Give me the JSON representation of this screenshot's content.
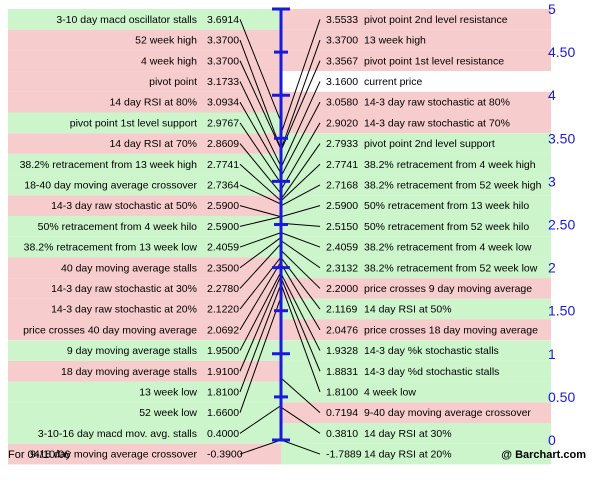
{
  "chart_data": {
    "type": "table",
    "axis": {
      "ylim": [
        0,
        5
      ],
      "tick_labels": [
        "0",
        "0.50",
        "1",
        "1.50",
        "2",
        "2.50",
        "3",
        "3.50",
        "4",
        "4.50",
        "5"
      ],
      "ticks": [
        0,
        0.5,
        1,
        1.5,
        2,
        2.5,
        3,
        3.5,
        4,
        4.5,
        5
      ]
    },
    "left": [
      {
        "label": "3-10 day macd oscillator stalls",
        "value": 3.6914,
        "display": "3.6914",
        "color": "green"
      },
      {
        "label": "52 week high",
        "value": 3.37,
        "display": "3.3700",
        "color": "red"
      },
      {
        "label": "4 week high",
        "value": 3.37,
        "display": "3.3700",
        "color": "red"
      },
      {
        "label": "pivot point",
        "value": 3.1733,
        "display": "3.1733",
        "color": "red"
      },
      {
        "label": "14 day RSI at 80%",
        "value": 3.0934,
        "display": "3.0934",
        "color": "red"
      },
      {
        "label": "pivot point 1st level support",
        "value": 2.9767,
        "display": "2.9767",
        "color": "green"
      },
      {
        "label": "14 day RSI at 70%",
        "value": 2.8609,
        "display": "2.8609",
        "color": "red"
      },
      {
        "label": "38.2% retracement from 13 week high",
        "value": 2.7741,
        "display": "2.7741",
        "color": "green"
      },
      {
        "label": "18-40 day moving average crossover",
        "value": 2.7364,
        "display": "2.7364",
        "color": "green"
      },
      {
        "label": "14-3 day raw stochastic at 50%",
        "value": 2.59,
        "display": "2.5900",
        "color": "red"
      },
      {
        "label": "50% retracement from 4 week hilo",
        "value": 2.59,
        "display": "2.5900",
        "color": "green"
      },
      {
        "label": "38.2% retracement from 13 week low",
        "value": 2.4059,
        "display": "2.4059",
        "color": "green"
      },
      {
        "label": "40 day moving average stalls",
        "value": 2.35,
        "display": "2.3500",
        "color": "red"
      },
      {
        "label": "14-3 day raw stochastic at 30%",
        "value": 2.278,
        "display": "2.2780",
        "color": "red"
      },
      {
        "label": "14-3 day raw stochastic at 20%",
        "value": 2.122,
        "display": "2.1220",
        "color": "red"
      },
      {
        "label": "price crosses 40 day moving average",
        "value": 2.0692,
        "display": "2.0692",
        "color": "red"
      },
      {
        "label": "9 day moving average stalls",
        "value": 1.95,
        "display": "1.9500",
        "color": "green"
      },
      {
        "label": "18 day moving average stalls",
        "value": 1.91,
        "display": "1.9100",
        "color": "red"
      },
      {
        "label": "13 week low",
        "value": 1.81,
        "display": "1.8100",
        "color": "green"
      },
      {
        "label": "52 week low",
        "value": 1.66,
        "display": "1.6600",
        "color": "green"
      },
      {
        "label": "3-10-16 day macd mov. avg. stalls",
        "value": 0.4,
        "display": "0.4000",
        "color": "green"
      },
      {
        "label": "9-18 day moving average crossover",
        "value": -0.39,
        "display": "-0.3900",
        "color": "red"
      }
    ],
    "right": [
      {
        "label": "pivot point 2nd level resistance",
        "value": 3.5533,
        "display": "3.5533",
        "color": "red"
      },
      {
        "label": "13 week high",
        "value": 3.37,
        "display": "3.3700",
        "color": "red"
      },
      {
        "label": "pivot point 1st level resistance",
        "value": 3.3567,
        "display": "3.3567",
        "color": "red"
      },
      {
        "label": "current price",
        "value": 3.16,
        "display": "3.1600",
        "color": "white"
      },
      {
        "label": "14-3 day raw stochastic at 80%",
        "value": 3.058,
        "display": "3.0580",
        "color": "red"
      },
      {
        "label": "14-3 day raw stochastic at 70%",
        "value": 2.902,
        "display": "2.9020",
        "color": "red"
      },
      {
        "label": "pivot point 2nd level support",
        "value": 2.7933,
        "display": "2.7933",
        "color": "green"
      },
      {
        "label": "38.2% retracement from 4 week high",
        "value": 2.7741,
        "display": "2.7741",
        "color": "green"
      },
      {
        "label": "38.2% retracement from 52 week high",
        "value": 2.7168,
        "display": "2.7168",
        "color": "green"
      },
      {
        "label": "50% retracement from 13 week hilo",
        "value": 2.59,
        "display": "2.5900",
        "color": "green"
      },
      {
        "label": "50% retracement from 52 week hilo",
        "value": 2.515,
        "display": "2.5150",
        "color": "green"
      },
      {
        "label": "38.2% retracement from 4 week low",
        "value": 2.4059,
        "display": "2.4059",
        "color": "green"
      },
      {
        "label": "38.2% retracement from 52 week low",
        "value": 2.3132,
        "display": "2.3132",
        "color": "green"
      },
      {
        "label": "price crosses 9 day moving average",
        "value": 2.2,
        "display": "2.2000",
        "color": "red"
      },
      {
        "label": "14 day RSI at 50%",
        "value": 2.1169,
        "display": "2.1169",
        "color": "green"
      },
      {
        "label": "price crosses 18 day moving average",
        "value": 2.0476,
        "display": "2.0476",
        "color": "red"
      },
      {
        "label": "14-3 day %k stochastic stalls",
        "value": 1.9328,
        "display": "1.9328",
        "color": "green"
      },
      {
        "label": "14-3 day %d stochastic stalls",
        "value": 1.8831,
        "display": "1.8831",
        "color": "green"
      },
      {
        "label": "4 week low",
        "value": 1.81,
        "display": "1.8100",
        "color": "green"
      },
      {
        "label": "9-40 day moving average crossover",
        "value": 0.7194,
        "display": "0.7194",
        "color": "red"
      },
      {
        "label": "14 day RSI at 30%",
        "value": 0.381,
        "display": "0.3810",
        "color": "green"
      },
      {
        "label": "14 day RSI at 20%",
        "value": -1.7889,
        "display": "-1.7889",
        "color": "green"
      }
    ]
  },
  "colors": {
    "green": "#ccf5cc",
    "red": "#f7cccc",
    "white": "#ffffff",
    "axis": "#1a1adc",
    "connector": "#000000"
  },
  "footer": {
    "date": "For 04/10/06",
    "credit": "@ Barchart.com"
  }
}
